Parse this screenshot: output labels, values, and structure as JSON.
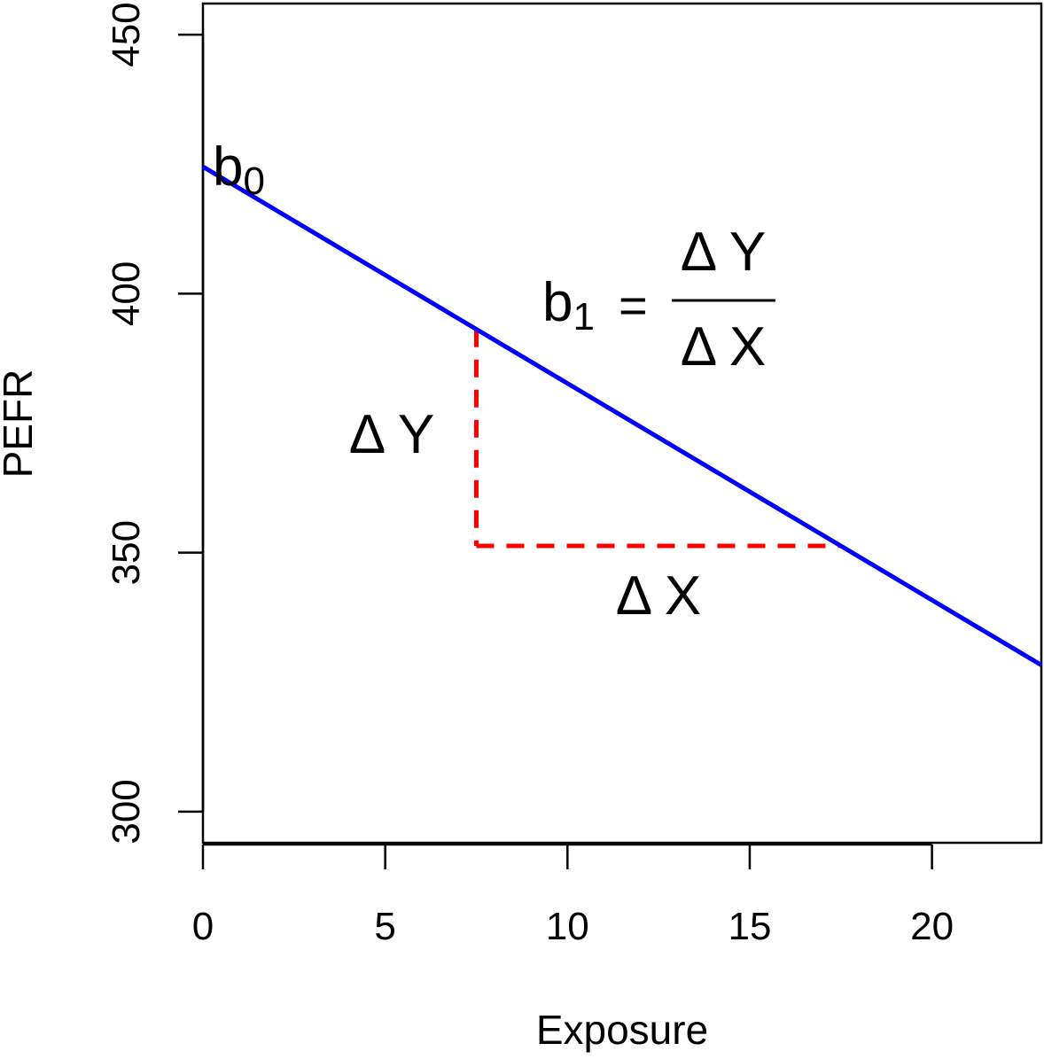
{
  "chart_data": {
    "type": "line",
    "title": "",
    "xlabel": "Exposure",
    "ylabel": "PEFR",
    "xlim": [
      0,
      23
    ],
    "ylim": [
      294,
      456
    ],
    "x_ticks": [
      0,
      5,
      10,
      15,
      20
    ],
    "y_ticks": [
      300,
      350,
      400,
      450
    ],
    "grid": false,
    "series": [
      {
        "x": [
          0,
          23
        ],
        "y": [
          424.5,
          328.3
        ],
        "color": "#0000ff",
        "style": "solid"
      }
    ],
    "slope_triangle": {
      "x_start": 7.5,
      "x_end": 17.5,
      "y_start": 393.1,
      "y_end": 351.3,
      "color": "#ff0000",
      "style": "dashed"
    },
    "annotations": {
      "intercept": {
        "base": "b",
        "sub": "0"
      },
      "slope": {
        "base": "b",
        "sub": "1",
        "equals": "=",
        "numerator": "Δ Y",
        "denominator": "Δ X"
      },
      "delta_y": "Δ Y",
      "delta_x": "Δ X"
    }
  }
}
